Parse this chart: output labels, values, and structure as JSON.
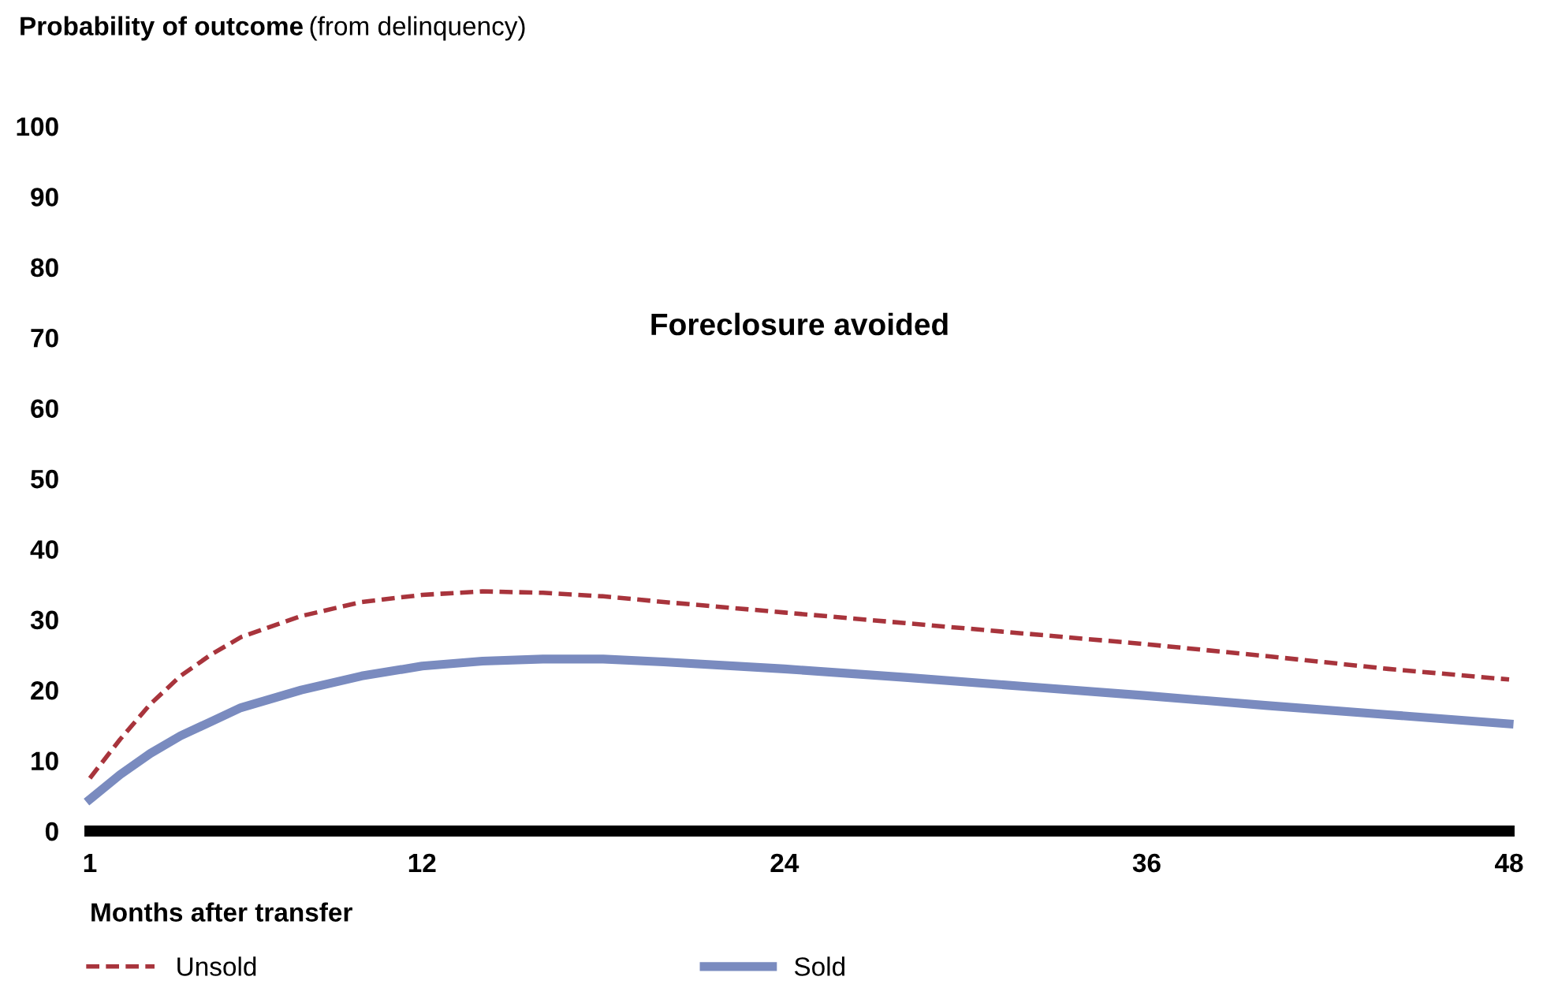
{
  "chart_data": {
    "type": "line",
    "title": "Probability of outcome",
    "subtitle": "(from delinquency)",
    "xlabel": "Months after transfer",
    "annotations": [
      "Foreclosure avoided"
    ],
    "x": [
      1,
      2,
      3,
      4,
      5,
      6,
      8,
      10,
      12,
      14,
      16,
      18,
      20,
      24,
      28,
      32,
      36,
      40,
      44,
      48
    ],
    "series": [
      {
        "name": "Unsold",
        "color": "#a8343c",
        "line_style": "dashed",
        "values": [
          7.5,
          13,
          18,
          22,
          25,
          27.5,
          30.5,
          32.5,
          33.5,
          34,
          33.8,
          33.3,
          32.5,
          31,
          29.5,
          28,
          26.5,
          24.8,
          23,
          21.5
        ]
      },
      {
        "name": "Sold",
        "color": "#7a8bbf",
        "line_style": "solid",
        "values": [
          4.5,
          8,
          11,
          13.5,
          15.5,
          17.5,
          20,
          22,
          23.4,
          24.1,
          24.4,
          24.4,
          24,
          23,
          21.8,
          20.5,
          19.2,
          17.8,
          16.5,
          15.2
        ]
      }
    ],
    "xlim": [
      1,
      48
    ],
    "xticks": [
      1,
      12,
      24,
      36,
      48
    ],
    "ylim": [
      0,
      100
    ],
    "yticks": [
      0,
      10,
      20,
      30,
      40,
      50,
      60,
      70,
      80,
      90,
      100
    ],
    "grid": false,
    "legend": "bottom",
    "marker": "none"
  }
}
